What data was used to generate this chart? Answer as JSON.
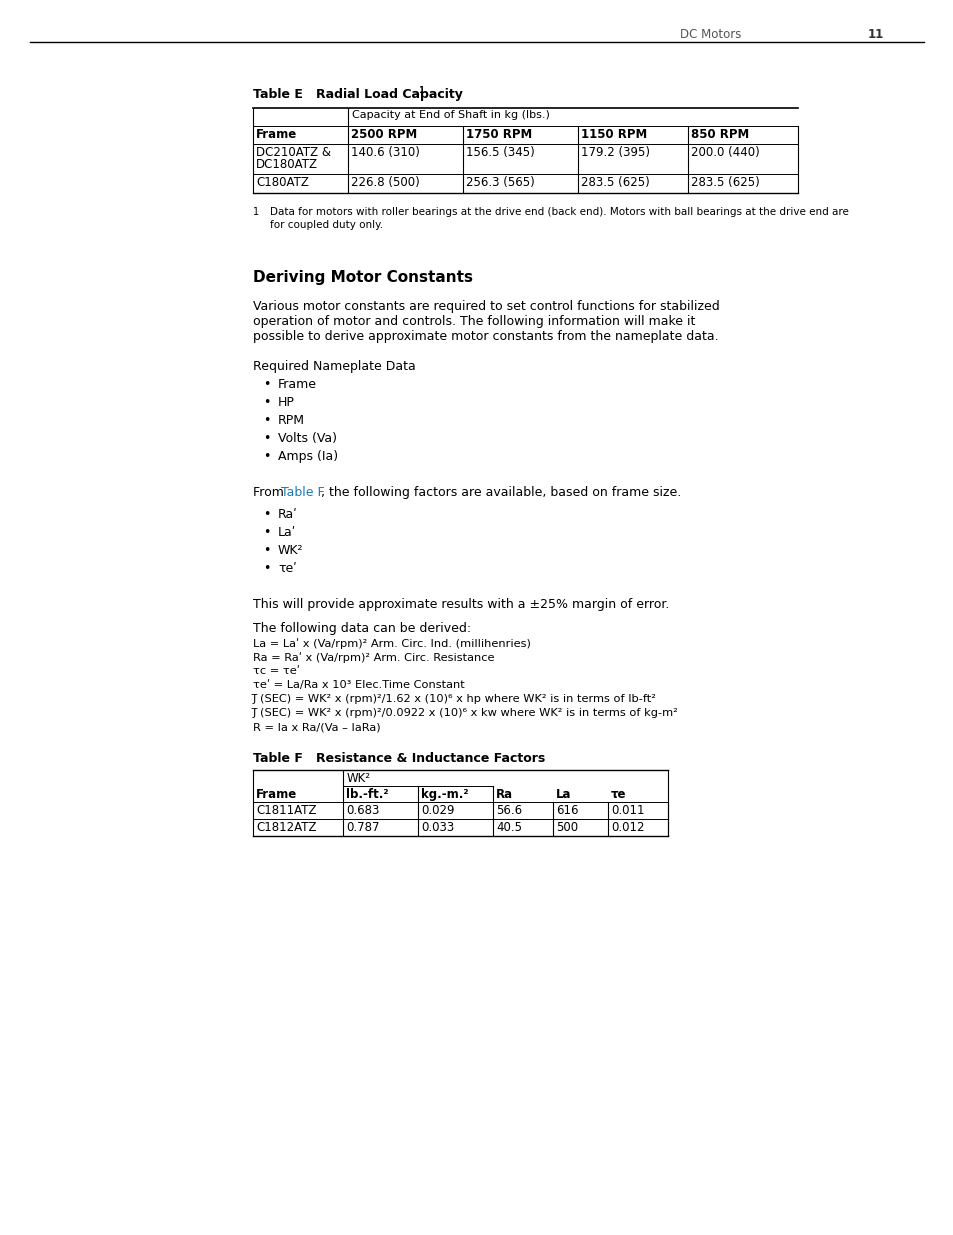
{
  "page_number": "11",
  "page_header": "DC Motors",
  "background_color": "#ffffff",
  "table_e_title": "Table E   Radial Load Capacity",
  "table_e_superscript": "1",
  "table_e_col_header_span": "Capacity at End of Shaft in kg (lbs.)",
  "table_e_headers": [
    "Frame",
    "2500 RPM",
    "1750 RPM",
    "1150 RPM",
    "850 RPM"
  ],
  "table_e_row1": [
    "DC210ATZ &",
    "140.6 (310)",
    "156.5 (345)",
    "179.2 (395)",
    "200.0 (440)"
  ],
  "table_e_row1b": "DC180ATZ",
  "table_e_row2": [
    "C180ATZ",
    "226.8 (500)",
    "256.3 (565)",
    "283.5 (625)",
    "283.5 (625)"
  ],
  "footnote_super": "1",
  "footnote_line1": "Data for motors with roller bearings at the drive end (back end). Motors with ball bearings at the drive end are",
  "footnote_line2": "for coupled duty only.",
  "section_title": "Deriving Motor Constants",
  "para1_line1": "Various motor constants are required to set control functions for stabilized",
  "para1_line2": "operation of motor and controls. The following information will make it",
  "para1_line3": "possible to derive approximate motor constants from the nameplate data.",
  "req_nameplate": "Required Nameplate Data",
  "bullets1": [
    "Frame",
    "HP",
    "RPM",
    "Volts (Va)",
    "Amps (Ia)"
  ],
  "para2_prefix": "From ",
  "para2_link": "Table F",
  "para2_suffix": ", the following factors are available, based on frame size.",
  "bullets2": [
    "Raʹ",
    "Laʹ",
    "WK²",
    "τeʹ"
  ],
  "para3": "This will provide approximate results with a ±25% margin of error.",
  "para4": "The following data can be derived:",
  "derived_lines": [
    "La = Laʹ x (Va/rpm)² Arm. Circ. Ind. (millihenries)",
    "Ra = Raʹ x (Va/rpm)² Arm. Circ. Resistance",
    "τc = τeʹ",
    "τeʹ = La/Ra x 10³ Elec.Time Constant",
    "J̅ (SEC) = WK² x (rpm)²/1.62 x (10)⁶ x hp where WK² is in terms of lb-ft²",
    "J̅ (SEC) = WK² x (rpm)²/0.0922 x (10)⁶ x kw where WK² is in terms of kg-m²",
    "R = Ia x Ra/(Va – IaRa)"
  ],
  "table_f_title": "Table F   Resistance & Inductance Factors",
  "table_f_wk2": "WK²",
  "table_f_subhdrs": [
    "lb.-ft.²",
    "kg.-m.²"
  ],
  "table_f_headers": [
    "Frame",
    "lb.-ft.²",
    "kg.-m.²",
    "Ra",
    "La",
    "τe"
  ],
  "table_f_rows": [
    [
      "C1811ATZ",
      "0.683",
      "0.029",
      "56.6",
      "616",
      "0.011"
    ],
    [
      "C1812ATZ",
      "0.787",
      "0.033",
      "40.5",
      "500",
      "0.012"
    ]
  ],
  "link_color": "#1a7ab5"
}
